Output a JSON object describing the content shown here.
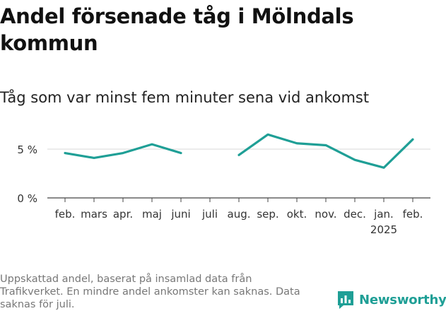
{
  "title": "Andel försenade tåg i Mölndals kommun",
  "subtitle": "Tåg som var minst fem minuter sena vid ankomst",
  "footnote": "Uppskattad andel, baserat på insamlad data från Trafikverket. En mindre andel ankomster kan saknas. Data saknas för juli.",
  "logo": {
    "text": "Newsworthy",
    "icon": "bar-chart-speech-bubble-icon",
    "color": "#1f9f96"
  },
  "chart_data": {
    "type": "line",
    "title": "Andel försenade tåg i Mölndals kommun",
    "subtitle": "Tåg som var minst fem minuter sena vid ankomst",
    "xlabel": "",
    "ylabel": "",
    "y_ticks": [
      0,
      5
    ],
    "y_tick_labels": [
      "0 %",
      "5 %"
    ],
    "ylim": [
      0,
      7
    ],
    "grid": "horizontal",
    "line_color": "#1f9f96",
    "categories": [
      "feb.",
      "mars",
      "apr.",
      "maj",
      "juni",
      "juli",
      "aug.",
      "sep.",
      "okt.",
      "nov.",
      "dec.",
      "jan.",
      "feb."
    ],
    "year_labels": [
      {
        "index": 11,
        "label": "2025"
      }
    ],
    "series": [
      {
        "values": [
          4.6,
          4.1,
          4.6,
          5.5,
          4.6,
          null,
          4.4,
          6.5,
          5.6,
          5.4,
          3.9,
          3.1,
          6.0
        ]
      }
    ]
  }
}
